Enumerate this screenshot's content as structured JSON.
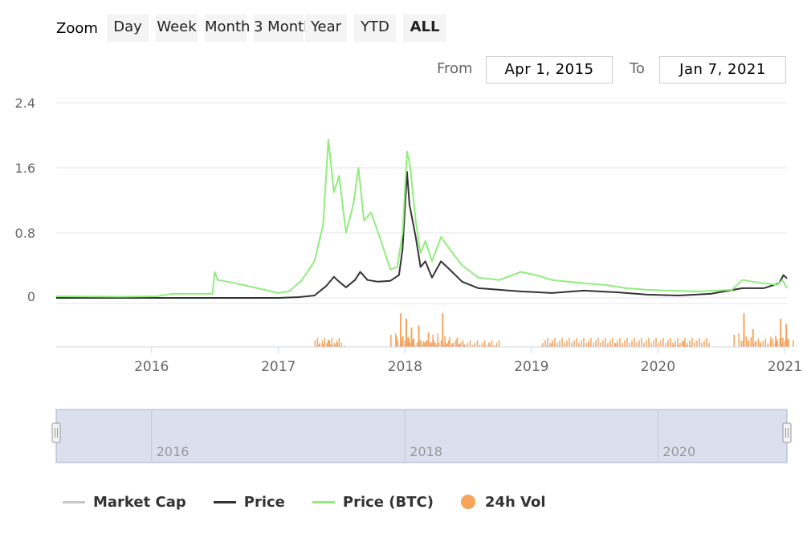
{
  "range_selector": {
    "zoom_label": "Zoom",
    "buttons": [
      "Day",
      "Week",
      "Month",
      "3 Month",
      "Year",
      "YTD",
      "ALL"
    ],
    "active": "ALL",
    "from_label": "From",
    "from_value": "Apr 1, 2015",
    "to_label": "To",
    "to_value": "Jan 7, 2021"
  },
  "navigator": {
    "labels": [
      "2016",
      "2018",
      "2020"
    ]
  },
  "colors": {
    "market_cap": "#c8c8c8",
    "price": "#333333",
    "price_btc": "#90ed7d",
    "vol": "#f7a35c",
    "navigator_fill": "#dbe0ef",
    "navigator_border": "#aab0cc"
  },
  "chart_data": {
    "type": "line",
    "x_range": [
      "2015-04-01",
      "2021-01-07"
    ],
    "y_ticks": [
      "2.4",
      "1.6",
      "0.8",
      "0"
    ],
    "ylim": [
      0,
      2.4
    ],
    "x_ticks": [
      "2016",
      "2017",
      "2018",
      "2019",
      "2020",
      "2021"
    ],
    "legend_position": "bottom",
    "legend": [
      "Market Cap",
      "Price",
      "Price (BTC)",
      "24h Vol"
    ],
    "series": [
      {
        "name": "Price (BTC)",
        "points": [
          [
            "2015-04-01",
            0.02
          ],
          [
            "2015-10-01",
            0.015
          ],
          [
            "2016-01-15",
            0.02
          ],
          [
            "2016-03-01",
            0.05
          ],
          [
            "2016-06-25",
            0.05
          ],
          [
            "2016-07-01",
            0.32
          ],
          [
            "2016-07-10",
            0.22
          ],
          [
            "2016-09-01",
            0.18
          ],
          [
            "2016-11-01",
            0.12
          ],
          [
            "2017-01-01",
            0.06
          ],
          [
            "2017-02-01",
            0.08
          ],
          [
            "2017-03-10",
            0.22
          ],
          [
            "2017-04-15",
            0.45
          ],
          [
            "2017-05-10",
            0.9
          ],
          [
            "2017-05-25",
            1.95
          ],
          [
            "2017-06-10",
            1.3
          ],
          [
            "2017-06-25",
            1.5
          ],
          [
            "2017-07-15",
            0.8
          ],
          [
            "2017-08-05",
            1.15
          ],
          [
            "2017-08-20",
            1.6
          ],
          [
            "2017-09-05",
            0.95
          ],
          [
            "2017-09-25",
            1.05
          ],
          [
            "2017-10-20",
            0.75
          ],
          [
            "2017-11-20",
            0.35
          ],
          [
            "2017-12-10",
            0.38
          ],
          [
            "2017-12-25",
            0.8
          ],
          [
            "2018-01-07",
            1.8
          ],
          [
            "2018-01-15",
            1.65
          ],
          [
            "2018-02-01",
            0.95
          ],
          [
            "2018-02-15",
            0.55
          ],
          [
            "2018-03-01",
            0.7
          ],
          [
            "2018-03-20",
            0.45
          ],
          [
            "2018-04-15",
            0.75
          ],
          [
            "2018-05-10",
            0.6
          ],
          [
            "2018-06-15",
            0.4
          ],
          [
            "2018-08-01",
            0.25
          ],
          [
            "2018-10-01",
            0.22
          ],
          [
            "2018-12-01",
            0.32
          ],
          [
            "2019-01-15",
            0.28
          ],
          [
            "2019-03-01",
            0.22
          ],
          [
            "2019-06-01",
            0.18
          ],
          [
            "2019-08-01",
            0.16
          ],
          [
            "2019-10-01",
            0.12
          ],
          [
            "2019-12-01",
            0.1
          ],
          [
            "2020-02-01",
            0.09
          ],
          [
            "2020-05-01",
            0.08
          ],
          [
            "2020-08-01",
            0.1
          ],
          [
            "2020-09-01",
            0.22
          ],
          [
            "2020-10-01",
            0.2
          ],
          [
            "2020-11-01",
            0.18
          ],
          [
            "2020-12-10",
            0.16
          ],
          [
            "2020-12-25",
            0.22
          ],
          [
            "2021-01-07",
            0.12
          ]
        ]
      },
      {
        "name": "Price",
        "points": [
          [
            "2015-04-01",
            0.0
          ],
          [
            "2016-06-01",
            0.0
          ],
          [
            "2017-01-01",
            0.0
          ],
          [
            "2017-03-01",
            0.01
          ],
          [
            "2017-04-15",
            0.03
          ],
          [
            "2017-05-20",
            0.15
          ],
          [
            "2017-06-10",
            0.26
          ],
          [
            "2017-06-25",
            0.2
          ],
          [
            "2017-07-15",
            0.13
          ],
          [
            "2017-08-10",
            0.22
          ],
          [
            "2017-08-25",
            0.32
          ],
          [
            "2017-09-15",
            0.22
          ],
          [
            "2017-10-15",
            0.2
          ],
          [
            "2017-11-20",
            0.21
          ],
          [
            "2017-12-15",
            0.28
          ],
          [
            "2017-12-25",
            0.6
          ],
          [
            "2018-01-07",
            1.55
          ],
          [
            "2018-01-14",
            1.15
          ],
          [
            "2018-02-01",
            0.75
          ],
          [
            "2018-02-15",
            0.38
          ],
          [
            "2018-03-01",
            0.45
          ],
          [
            "2018-03-20",
            0.25
          ],
          [
            "2018-04-15",
            0.45
          ],
          [
            "2018-05-10",
            0.35
          ],
          [
            "2018-06-15",
            0.2
          ],
          [
            "2018-08-01",
            0.12
          ],
          [
            "2018-10-01",
            0.1
          ],
          [
            "2018-12-01",
            0.08
          ],
          [
            "2019-03-01",
            0.06
          ],
          [
            "2019-06-01",
            0.09
          ],
          [
            "2019-09-01",
            0.07
          ],
          [
            "2019-12-01",
            0.04
          ],
          [
            "2020-03-01",
            0.03
          ],
          [
            "2020-06-01",
            0.05
          ],
          [
            "2020-09-01",
            0.12
          ],
          [
            "2020-11-01",
            0.12
          ],
          [
            "2020-12-15",
            0.18
          ],
          [
            "2020-12-28",
            0.28
          ],
          [
            "2021-01-07",
            0.24
          ]
        ]
      },
      {
        "name": "24h Vol",
        "spikes": [
          [
            "2017-05-25",
            0.2
          ],
          [
            "2017-06-20",
            0.12
          ],
          [
            "2017-12-20",
            0.95
          ],
          [
            "2018-01-05",
            0.8
          ],
          [
            "2018-01-20",
            0.55
          ],
          [
            "2018-02-10",
            0.6
          ],
          [
            "2018-03-10",
            0.4
          ],
          [
            "2018-04-20",
            0.95
          ],
          [
            "2018-06-01",
            0.25
          ],
          [
            "2018-09-01",
            0.12
          ],
          [
            "2019-03-01",
            0.1
          ],
          [
            "2019-06-15",
            0.12
          ],
          [
            "2019-09-01",
            0.1
          ],
          [
            "2020-03-15",
            0.15
          ],
          [
            "2020-09-05",
            0.95
          ],
          [
            "2020-10-01",
            0.5
          ],
          [
            "2020-12-20",
            0.8
          ],
          [
            "2021-01-05",
            0.65
          ]
        ]
      }
    ]
  }
}
